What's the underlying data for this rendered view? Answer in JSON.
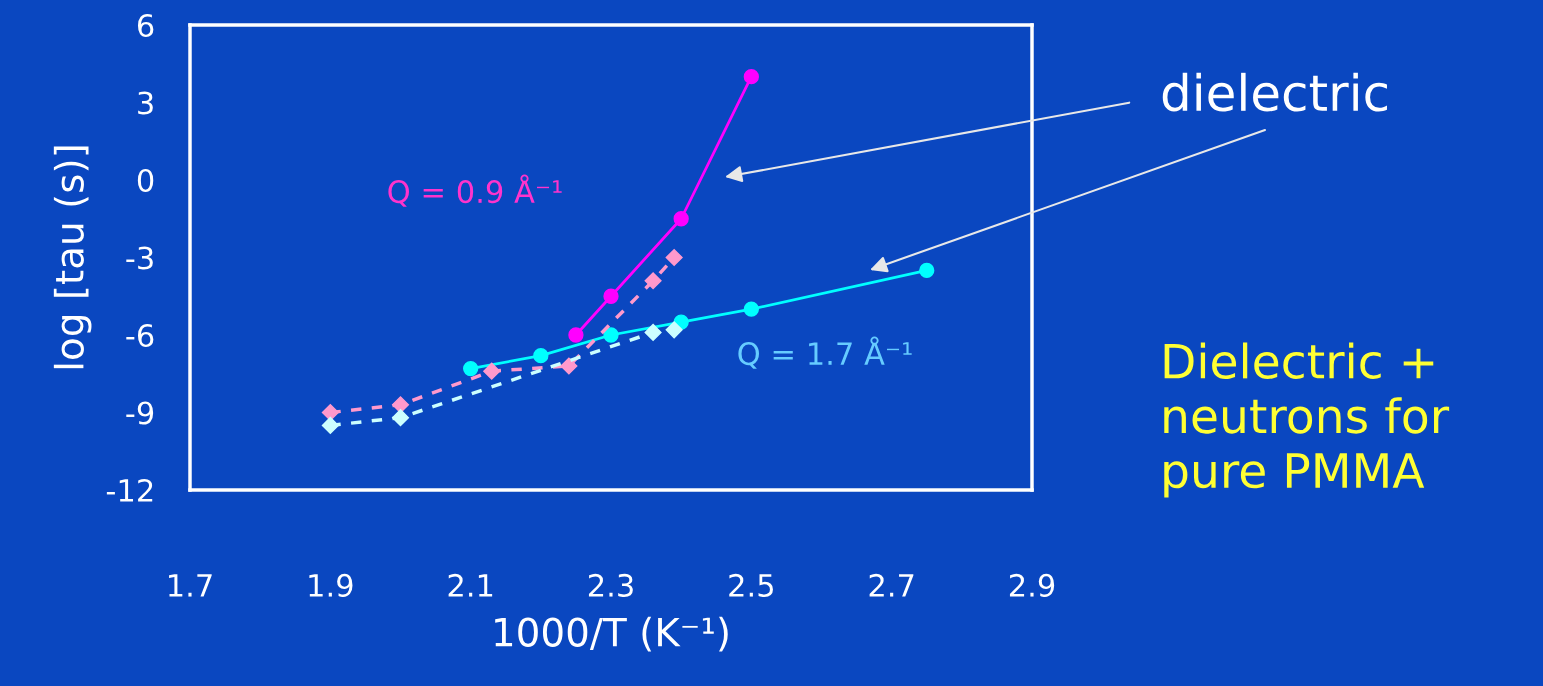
{
  "chart_data": {
    "type": "line",
    "xlabel": "1000/T (K⁻¹)",
    "ylabel": "log [tau (s)]",
    "xlim": [
      1.7,
      2.9
    ],
    "ylim": [
      -12,
      6
    ],
    "xticks": [
      {
        "value": 1.7,
        "label": "1.7"
      },
      {
        "value": 1.9,
        "label": "1.9"
      },
      {
        "value": 2.1,
        "label": "2.1"
      },
      {
        "value": 2.3,
        "label": "2.3"
      },
      {
        "value": 2.5,
        "label": "2.5"
      },
      {
        "value": 2.7,
        "label": "2.7"
      },
      {
        "value": 2.9,
        "label": "2.9"
      }
    ],
    "yticks": [
      -12,
      -9,
      -6,
      -3,
      0,
      3,
      6
    ],
    "grid": false,
    "series": [
      {
        "color": "#ff00ff",
        "marker": "circle",
        "line_style": "solid",
        "x": [
          2.25,
          2.3,
          2.4,
          2.5
        ],
        "values": [
          -6.0,
          -4.5,
          -1.5,
          4.0
        ]
      },
      {
        "color": "#00ffff",
        "marker": "circle",
        "line_style": "solid",
        "x": [
          2.1,
          2.2,
          2.3,
          2.4,
          2.5,
          2.75
        ],
        "values": [
          -7.3,
          -6.8,
          -6.0,
          -5.5,
          -5.0,
          -3.5
        ]
      },
      {
        "color": "#ff99cc",
        "marker": "diamond",
        "line_style": "dashed",
        "x": [
          1.9,
          2.0,
          2.13,
          2.24,
          2.36,
          2.39
        ],
        "values": [
          -9.0,
          -8.7,
          -7.4,
          -7.2,
          -3.9,
          -3.0
        ]
      },
      {
        "color": "#ccffff",
        "marker": "diamond",
        "line_style": "dashed",
        "x": [
          1.9,
          2.0,
          2.36,
          2.39
        ],
        "values": [
          -9.5,
          -9.2,
          -5.9,
          -5.8
        ]
      }
    ],
    "annotations": [
      "Q = 0.9 Å⁻¹",
      "Q = 1.7 Å⁻¹",
      "dielectric",
      "Dielectric +\nneutrons for\npure PMMA"
    ]
  }
}
